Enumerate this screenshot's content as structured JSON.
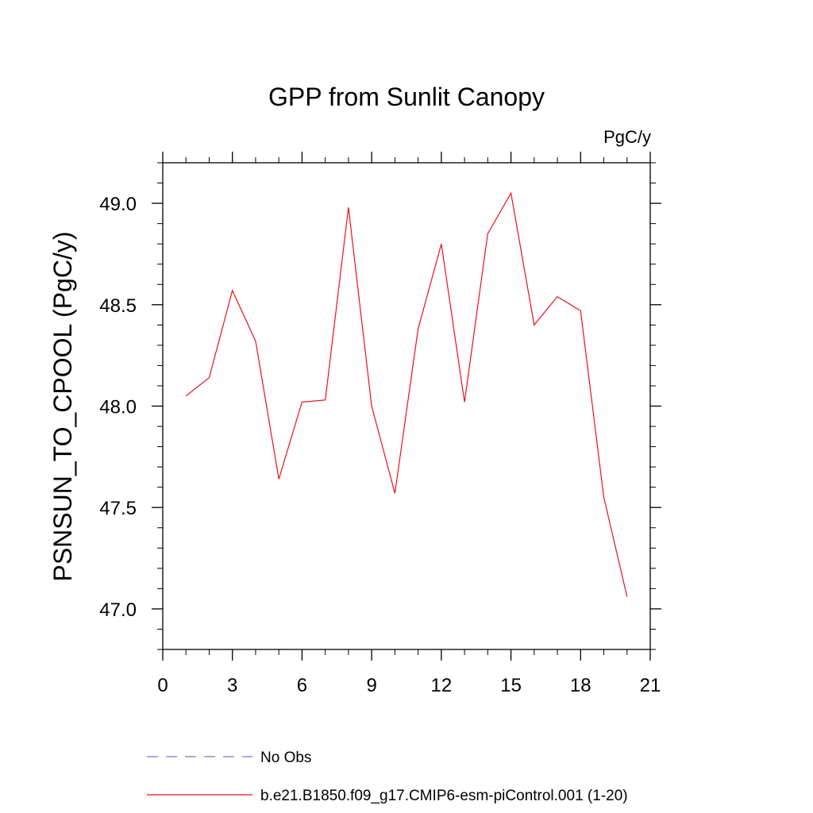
{
  "chart_data": {
    "type": "line",
    "title": "GPP from Sunlit Canopy",
    "units_label": "PgC/y",
    "xlabel": "",
    "ylabel": "PSNSUN_TO_CPOOL  (PgC/y)",
    "xlim": [
      0,
      21
    ],
    "ylim": [
      46.8,
      49.2
    ],
    "x_ticks": [
      0,
      3,
      6,
      9,
      12,
      15,
      18,
      21
    ],
    "x_tick_labels": [
      "0",
      "3",
      "6",
      "9",
      "12",
      "15",
      "18",
      "21"
    ],
    "y_ticks": [
      47.0,
      47.5,
      48.0,
      48.5,
      49.0
    ],
    "y_tick_labels": [
      "47.0",
      "47.5",
      "48.0",
      "48.5",
      "49.0"
    ],
    "grid": false,
    "legend_position": "bottom",
    "series": [
      {
        "name": "No Obs",
        "color": "#7b72c8",
        "dash": "dashed",
        "x": [],
        "y": []
      },
      {
        "name": "b.e21.B1850.f09_g17.CMIP6-esm-piControl.001 (1-20)",
        "color": "#e8111a",
        "dash": "solid",
        "x": [
          1,
          2,
          3,
          4,
          5,
          6,
          7,
          8,
          9,
          10,
          11,
          12,
          13,
          14,
          15,
          16,
          17,
          18,
          19,
          20
        ],
        "y": [
          48.05,
          48.14,
          48.57,
          48.32,
          47.64,
          48.02,
          48.03,
          48.98,
          48.0,
          47.57,
          48.38,
          48.8,
          48.02,
          48.85,
          49.05,
          48.4,
          48.54,
          48.47,
          47.55,
          47.06
        ]
      }
    ]
  }
}
